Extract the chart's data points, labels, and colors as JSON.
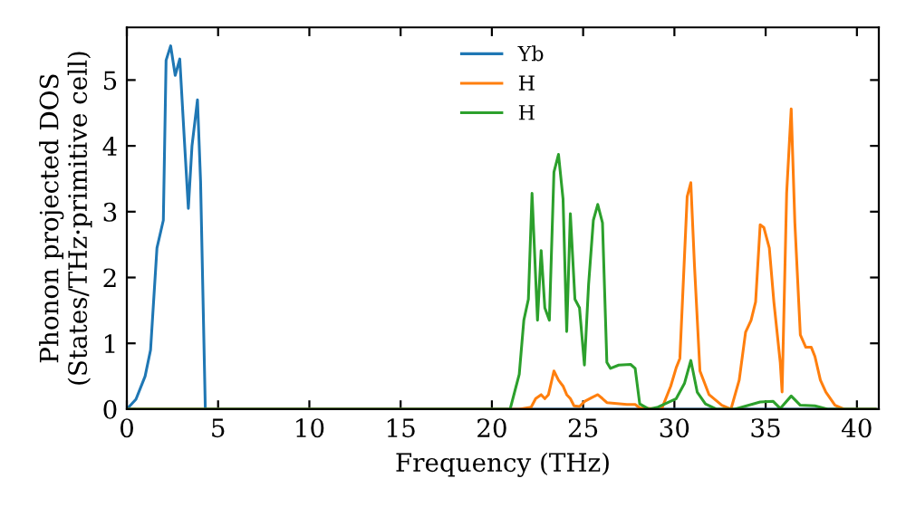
{
  "chart_data": {
    "type": "line",
    "xlabel": "Frequency (THz)",
    "ylabel": "Phonon projected DOS\n(States/THz·primitive cell)",
    "xlim": [
      0,
      41.2
    ],
    "ylim": [
      0,
      5.8
    ],
    "xticks": [
      0,
      5,
      10,
      15,
      20,
      25,
      30,
      35,
      40
    ],
    "yticks": [
      0,
      1,
      2,
      3,
      4,
      5
    ],
    "grid": false,
    "legend": "top",
    "marker": "none",
    "line_style": "solid",
    "series": [
      {
        "name": "Yb",
        "color": "#1f77b4",
        "x": [
          0,
          0.5,
          1.0,
          1.3,
          1.65,
          2.0,
          2.15,
          2.4,
          2.65,
          2.9,
          3.15,
          3.37,
          3.57,
          3.87,
          4.04,
          4.3,
          41
        ],
        "values": [
          0,
          0.15,
          0.5,
          0.9,
          2.45,
          2.87,
          5.3,
          5.52,
          5.07,
          5.32,
          4.1,
          3.05,
          4.0,
          4.7,
          3.46,
          0,
          0
        ]
      },
      {
        "name": "H",
        "color": "#ff7f0e",
        "x": [
          0,
          21.5,
          22.15,
          22.4,
          22.7,
          22.9,
          23.1,
          23.4,
          23.65,
          23.9,
          24.1,
          24.3,
          24.5,
          24.8,
          25.1,
          25.5,
          25.8,
          26.06,
          26.3,
          27.4,
          27.85,
          28.1,
          29.3,
          29.8,
          30.1,
          30.3,
          30.7,
          30.9,
          31.1,
          31.4,
          31.9,
          32.6,
          33.1,
          33.55,
          33.9,
          34.2,
          34.45,
          34.7,
          34.9,
          35.2,
          35.45,
          35.8,
          35.9,
          36.15,
          36.4,
          36.6,
          36.9,
          37.2,
          37.5,
          37.7,
          38.0,
          38.3,
          38.8,
          39.3,
          41
        ],
        "values": [
          0,
          0,
          0.03,
          0.16,
          0.22,
          0.16,
          0.22,
          0.58,
          0.44,
          0.35,
          0.22,
          0.16,
          0.05,
          0.04,
          0.12,
          0.18,
          0.22,
          0.16,
          0.1,
          0.07,
          0.07,
          0.02,
          0,
          0.35,
          0.63,
          0.77,
          3.23,
          3.44,
          2.18,
          0.58,
          0.22,
          0.06,
          0,
          0.44,
          1.17,
          1.35,
          1.63,
          2.8,
          2.76,
          2.45,
          1.63,
          0.71,
          0.26,
          3.28,
          4.56,
          2.83,
          1.13,
          0.94,
          0.94,
          0.8,
          0.44,
          0.26,
          0.06,
          0,
          0
        ]
      },
      {
        "name": "H",
        "color": "#2ca02c",
        "x": [
          0,
          21.0,
          21.5,
          21.75,
          22.0,
          22.2,
          22.5,
          22.7,
          22.9,
          23.15,
          23.4,
          23.65,
          23.9,
          24.1,
          24.3,
          24.55,
          24.8,
          25.07,
          25.3,
          25.56,
          25.8,
          26.06,
          26.3,
          26.5,
          26.95,
          27.6,
          27.85,
          28.1,
          28.6,
          29.1,
          30.1,
          30.55,
          30.9,
          31.25,
          31.7,
          32.3,
          33.3,
          34.7,
          35.4,
          35.8,
          36.4,
          36.9,
          37.7,
          38.4,
          41
        ],
        "values": [
          0,
          0,
          0.53,
          1.35,
          1.67,
          3.28,
          1.35,
          2.41,
          1.54,
          1.35,
          3.6,
          3.87,
          3.19,
          1.18,
          2.97,
          1.67,
          1.54,
          0.67,
          1.9,
          2.87,
          3.11,
          2.83,
          0.71,
          0.62,
          0.67,
          0.68,
          0.62,
          0.08,
          0,
          0.03,
          0.16,
          0.39,
          0.74,
          0.26,
          0.08,
          0,
          0,
          0.11,
          0.12,
          0.01,
          0.2,
          0.06,
          0.05,
          0,
          0
        ]
      }
    ]
  }
}
